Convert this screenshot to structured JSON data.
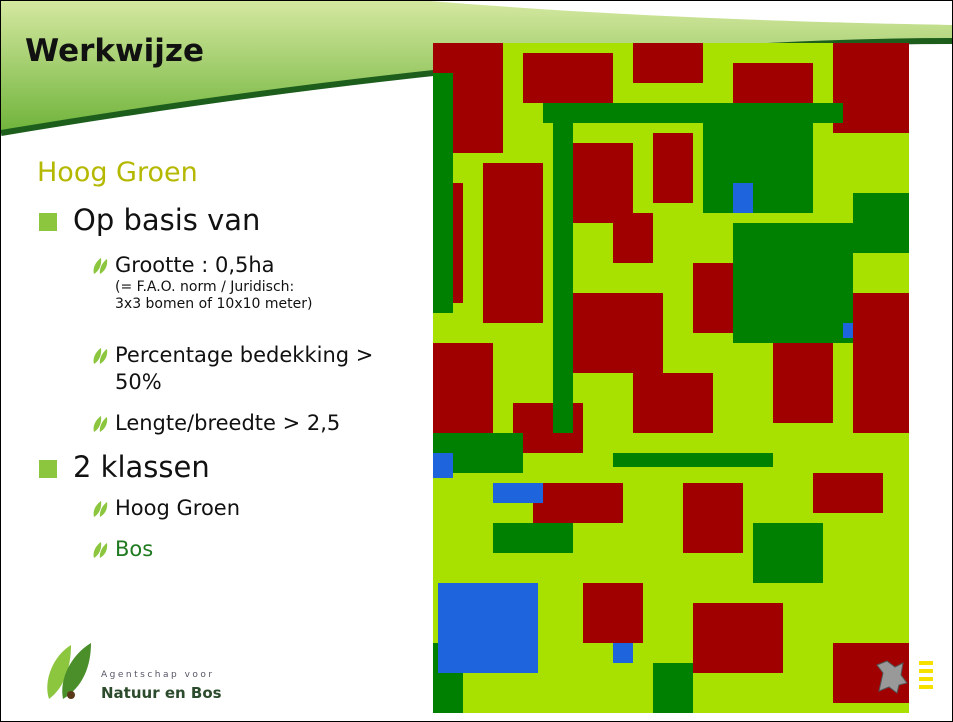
{
  "header": {
    "title": "Werkwijze"
  },
  "subtitle": "Hoog Groen",
  "bullets": [
    {
      "text": "Op basis van",
      "items": [
        {
          "text": "Grootte : 0,5ha",
          "note": [
            "(= F.A.O. norm / Juridisch:",
            "3x3 bomen of 10x10 meter)"
          ]
        },
        {
          "text": "Percentage bedekking > 50%"
        },
        {
          "text": "Lengte/breedte > 2,5"
        }
      ]
    },
    {
      "text": "2 klassen",
      "items": [
        {
          "text": "Hoog Groen"
        },
        {
          "text": "Bos"
        }
      ]
    }
  ],
  "logo": {
    "line1": "Agentschap voor",
    "line2": "Natuur en Bos"
  }
}
